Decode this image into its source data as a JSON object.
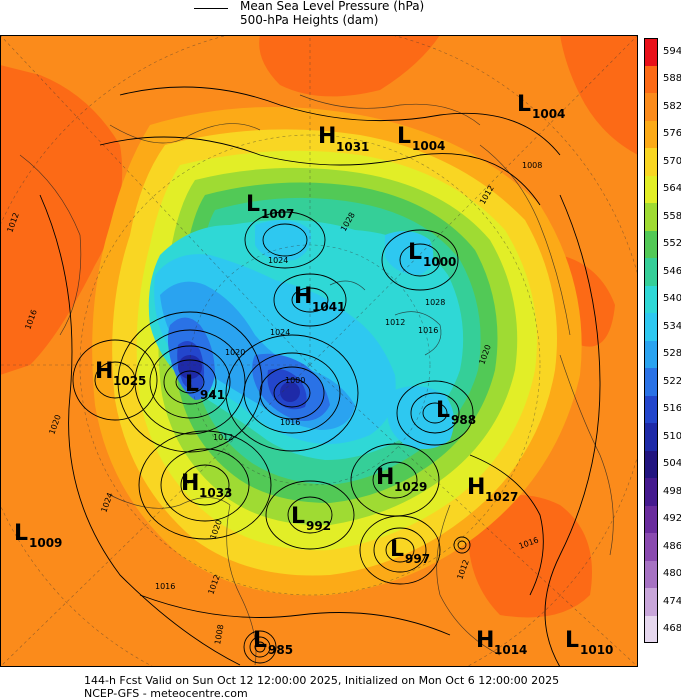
{
  "legend": {
    "line1": "Mean Sea Level Pressure (hPa)",
    "line2": "500-hPa Heights (dam)"
  },
  "colorbar": {
    "levels": [
      "594",
      "588",
      "582",
      "576",
      "570",
      "564",
      "558",
      "552",
      "546",
      "540",
      "534",
      "528",
      "522",
      "516",
      "510",
      "504",
      "498",
      "492",
      "486",
      "480",
      "474",
      "468"
    ],
    "colors": [
      "#e8101a",
      "#fc6a16",
      "#fb8b1b",
      "#fcaa17",
      "#f9d623",
      "#e2ee27",
      "#9fdb33",
      "#52c956",
      "#35cf98",
      "#2fd8d6",
      "#2ec8f0",
      "#2aa3f0",
      "#2a72e6",
      "#2346cc",
      "#1e2aa8",
      "#221580",
      "#451a8f",
      "#6a2c9e",
      "#8a4ab0",
      "#a672c3",
      "#c8a6da",
      "#e6d8ef"
    ]
  },
  "pressure_centers": [
    {
      "type": "H",
      "value": "1031"
    },
    {
      "type": "L",
      "value": "1004"
    },
    {
      "type": "L",
      "value": "1004"
    },
    {
      "type": "L",
      "value": "1007"
    },
    {
      "type": "L",
      "value": "1000"
    },
    {
      "type": "H",
      "value": "1041"
    },
    {
      "type": "H",
      "value": "1025"
    },
    {
      "type": "L",
      "value": "941"
    },
    {
      "type": "L",
      "value": "988"
    },
    {
      "type": "H",
      "value": "1033"
    },
    {
      "type": "H",
      "value": "1029"
    },
    {
      "type": "H",
      "value": "1027"
    },
    {
      "type": "L",
      "value": "992"
    },
    {
      "type": "L",
      "value": "1009"
    },
    {
      "type": "L",
      "value": "997"
    },
    {
      "type": "L",
      "value": "985"
    },
    {
      "type": "H",
      "value": "1014"
    },
    {
      "type": "L",
      "value": "1010"
    }
  ],
  "contour_labels": [
    "1012",
    "1016",
    "1020",
    "1024",
    "1028",
    "1008",
    "1012",
    "1016",
    "1020",
    "1024",
    "1016",
    "1012",
    "1008",
    "1016",
    "1012",
    "1024",
    "1020",
    "1012",
    "1016",
    "1028",
    "1020",
    "1012",
    "1000"
  ],
  "footer": {
    "line1": "144-h Fcst Valid on Sun Oct 12 12:00:00 2025, Initialized on Mon Oct  6 12:00:00 2025",
    "line2": "NCEP-GFS - meteocentre.com"
  }
}
